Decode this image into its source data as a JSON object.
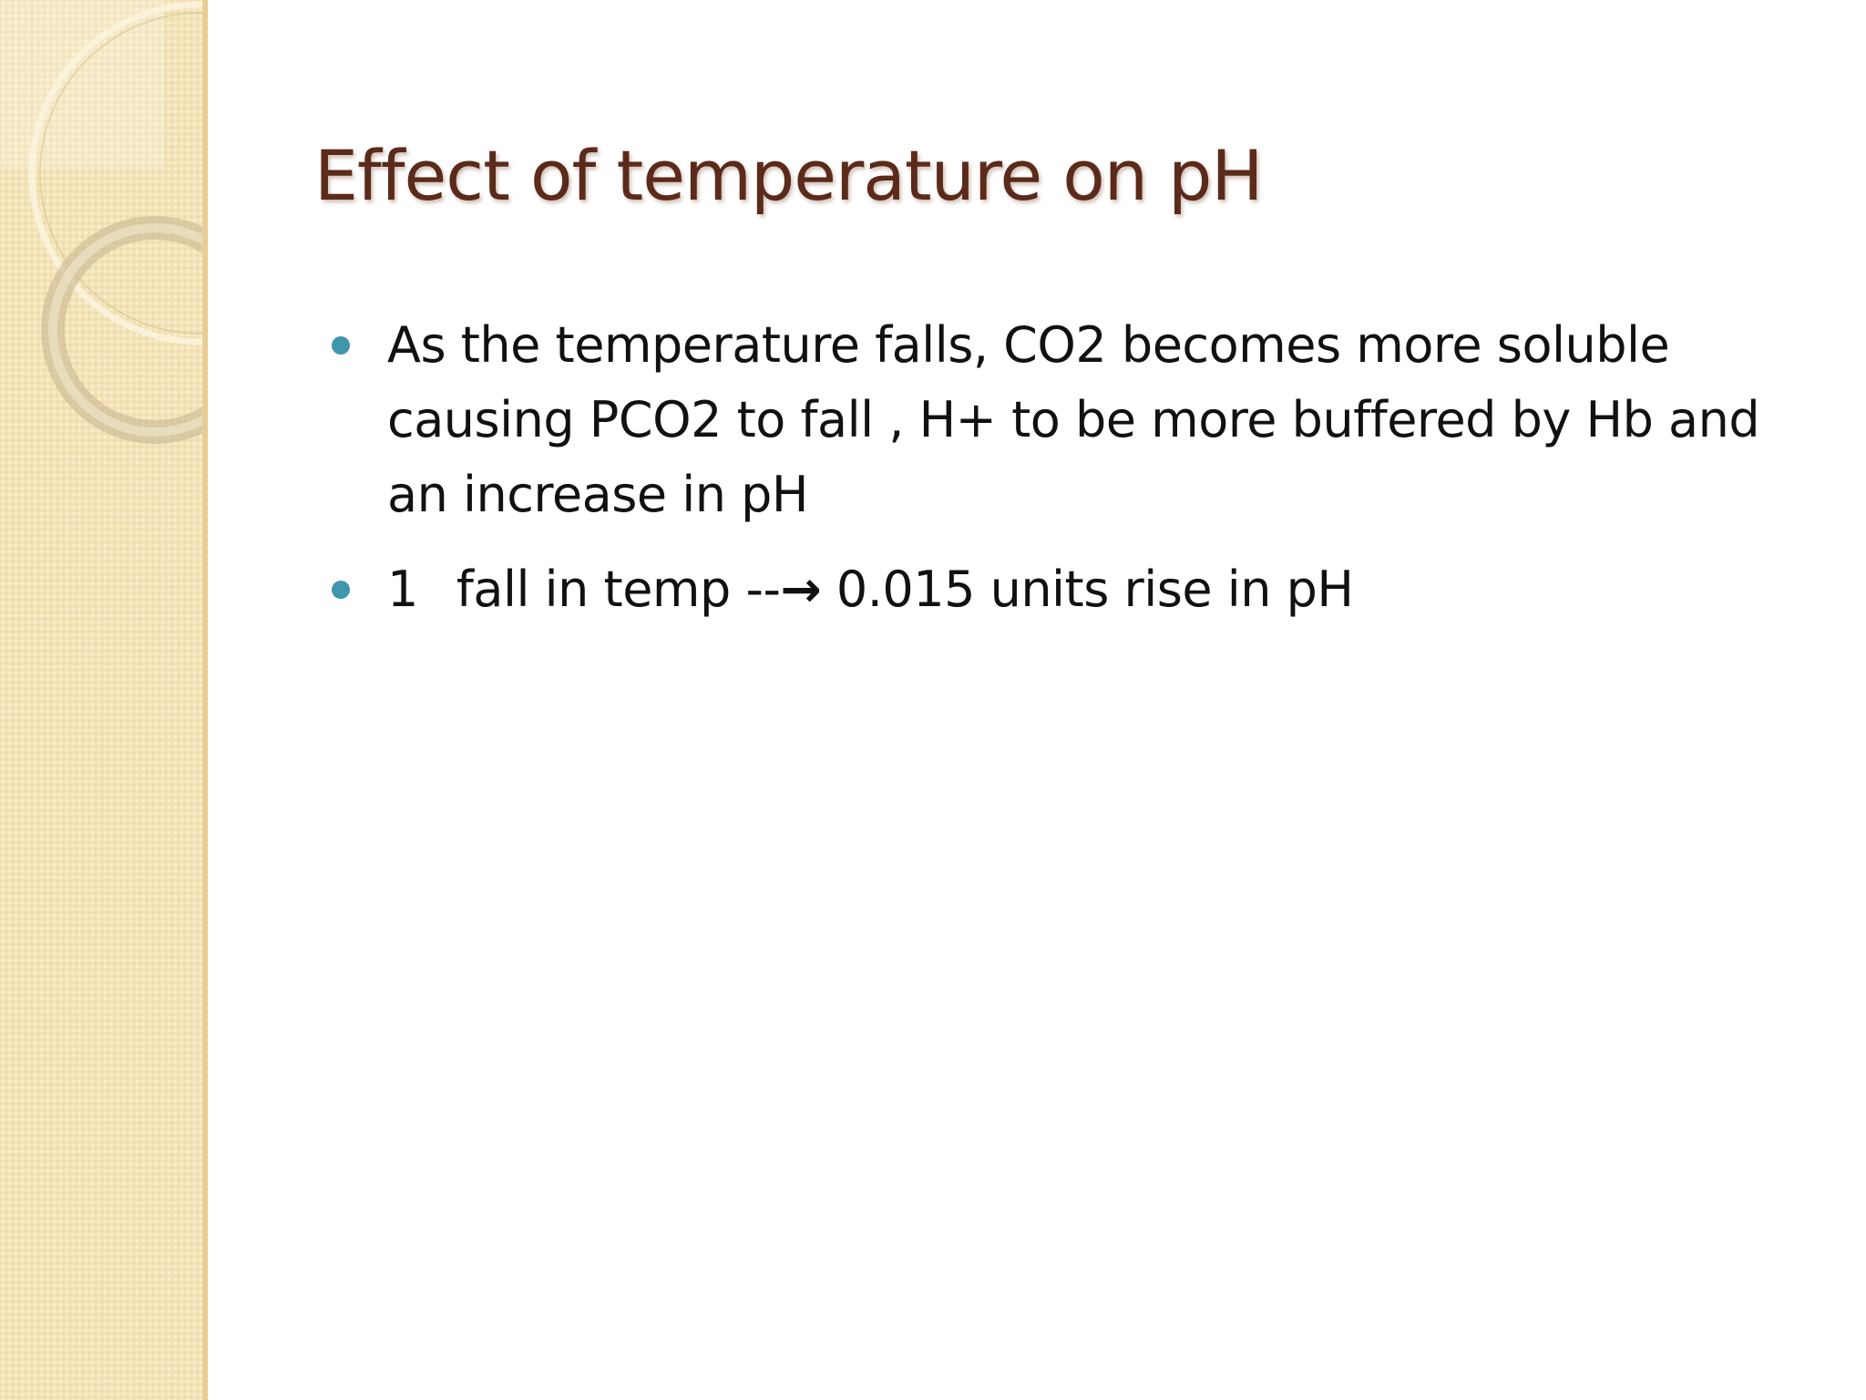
{
  "slide": {
    "title": "Effect of temperature on pH",
    "bullets": [
      {
        "text": "As the temperature falls, CO2 becomes more soluble causing PCO2 to fall , H+ to be more buffered by Hb and an increase in pH"
      },
      {
        "number": "1",
        "pre_arrow": "fall in temp --",
        "arrow": "→",
        "post_arrow": " 0.015 units rise in pH"
      }
    ]
  },
  "colors": {
    "title": "#5a2a1a",
    "bullet_dot": "#3e97ad",
    "sidebar": "#f3e3b6"
  }
}
